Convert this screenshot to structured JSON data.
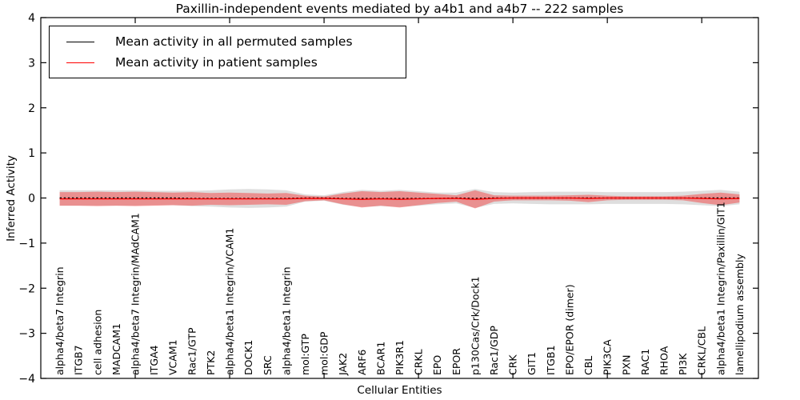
{
  "figure": {
    "title": "Paxillin-independent events mediated by a4b1 and a4b7 -- 222 samples",
    "xlabel": "Cellular Entities",
    "ylabel": "Inferred Activity"
  },
  "legend": {
    "entries": [
      {
        "label": "Mean activity in all permuted samples",
        "color": "#000000"
      },
      {
        "label": "Mean activity in patient samples",
        "color": "#ff0000"
      }
    ]
  },
  "chart_data": {
    "type": "line",
    "title": "Paxillin-independent events mediated by a4b1 and a4b7 -- 222 samples",
    "xlabel": "Cellular Entities",
    "ylabel": "Inferred Activity",
    "ylim": [
      -4,
      4
    ],
    "ytick_labels": [
      "−4",
      "−3",
      "−2",
      "−1",
      "0",
      "1",
      "2",
      "3",
      "4"
    ],
    "ytick_values": [
      -4,
      -3,
      -2,
      -1,
      0,
      1,
      2,
      3,
      4
    ],
    "xtick_values": [
      5,
      10,
      15,
      20,
      25,
      30,
      35
    ],
    "grid": false,
    "legend_position": "upper left",
    "categories": [
      "alpha4/beta7 Integrin",
      "ITGB7",
      "cell adhesion",
      "MADCAM1",
      "alpha4/beta7 Integrin/MAdCAM1",
      "ITGA4",
      "VCAM1",
      "Rac1/GTP",
      "PTK2",
      "alpha4/beta1 Integrin/VCAM1",
      "DOCK1",
      "SRC",
      "alpha4/beta1 Integrin",
      "mol:GTP",
      "mol:GDP",
      "JAK2",
      "ARF6",
      "BCAR1",
      "PIK3R1",
      "CRKL",
      "EPO",
      "EPOR",
      "p130Cas/Crk/Dock1",
      "Rac1/GDP",
      "CRK",
      "GIT1",
      "ITGB1",
      "EPO/EPOR (dimer)",
      "CBL",
      "PIK3CA",
      "PXN",
      "RAC1",
      "RHOA",
      "PI3K",
      "CRKL/CBL",
      "alpha4/beta1 Integrin/Paxillin/GIT1",
      "lamellipodium assembly"
    ],
    "series": [
      {
        "name": "Mean activity in all permuted samples",
        "color": "#000000",
        "style": "dashed",
        "band_color": "#000000",
        "band_opacity": 0.13,
        "values": [
          0,
          0,
          0,
          0,
          0,
          0,
          0,
          -0.01,
          -0.01,
          -0.01,
          -0.01,
          -0.01,
          -0.01,
          0,
          0,
          -0.01,
          -0.01,
          -0.01,
          -0.01,
          -0.01,
          -0.01,
          0,
          -0.01,
          0,
          0,
          0,
          0,
          0,
          0,
          0,
          0,
          0,
          0,
          0,
          0,
          0,
          0
        ],
        "std": [
          0.17,
          0.17,
          0.17,
          0.17,
          0.17,
          0.16,
          0.16,
          0.17,
          0.18,
          0.2,
          0.21,
          0.2,
          0.18,
          0.08,
          0.06,
          0.14,
          0.19,
          0.17,
          0.19,
          0.16,
          0.13,
          0.12,
          0.21,
          0.13,
          0.12,
          0.13,
          0.14,
          0.14,
          0.14,
          0.13,
          0.13,
          0.13,
          0.13,
          0.14,
          0.16,
          0.18,
          0.14
        ]
      },
      {
        "name": "Mean activity in patient samples",
        "color": "#ff0000",
        "style": "solid",
        "band_color": "#ff0000",
        "band_opacity": 0.35,
        "values": [
          -0.02,
          -0.02,
          -0.02,
          -0.02,
          -0.02,
          -0.02,
          -0.02,
          -0.02,
          -0.02,
          -0.02,
          -0.02,
          -0.02,
          -0.02,
          -0.01,
          -0.01,
          -0.02,
          -0.03,
          -0.02,
          -0.03,
          -0.02,
          -0.01,
          -0.01,
          -0.03,
          -0.01,
          0,
          0,
          0,
          0,
          -0.01,
          0,
          0,
          0,
          0,
          0,
          -0.01,
          -0.02,
          -0.01
        ],
        "std": [
          0.15,
          0.15,
          0.16,
          0.15,
          0.16,
          0.15,
          0.14,
          0.15,
          0.13,
          0.14,
          0.13,
          0.12,
          0.13,
          0.06,
          0.04,
          0.12,
          0.18,
          0.15,
          0.18,
          0.14,
          0.1,
          0.07,
          0.2,
          0.07,
          0.05,
          0.05,
          0.05,
          0.06,
          0.08,
          0.05,
          0.04,
          0.04,
          0.04,
          0.05,
          0.1,
          0.14,
          0.09
        ]
      }
    ]
  }
}
